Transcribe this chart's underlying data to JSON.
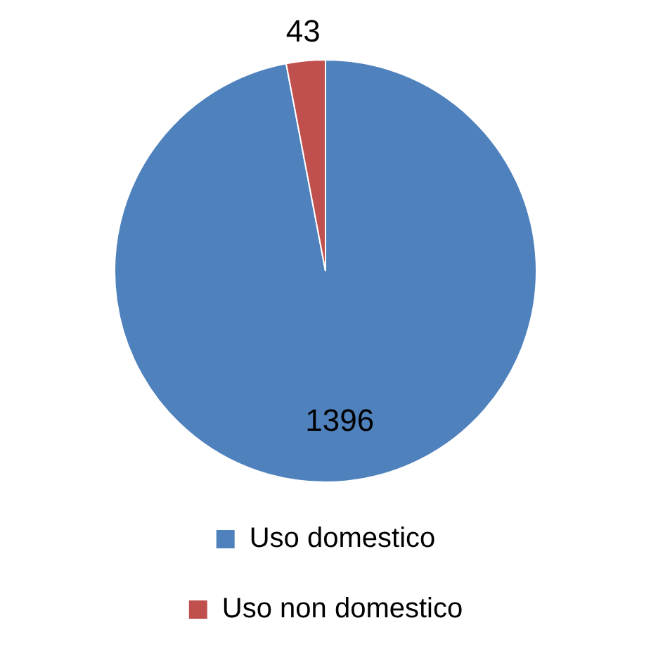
{
  "chart_data": {
    "type": "pie",
    "categories": [
      "Uso domestico",
      "Uso non domestico"
    ],
    "values": [
      1396,
      43
    ],
    "colors": [
      "#4f81bd",
      "#c0504d"
    ],
    "data_labels": true,
    "legend": "bottom"
  }
}
